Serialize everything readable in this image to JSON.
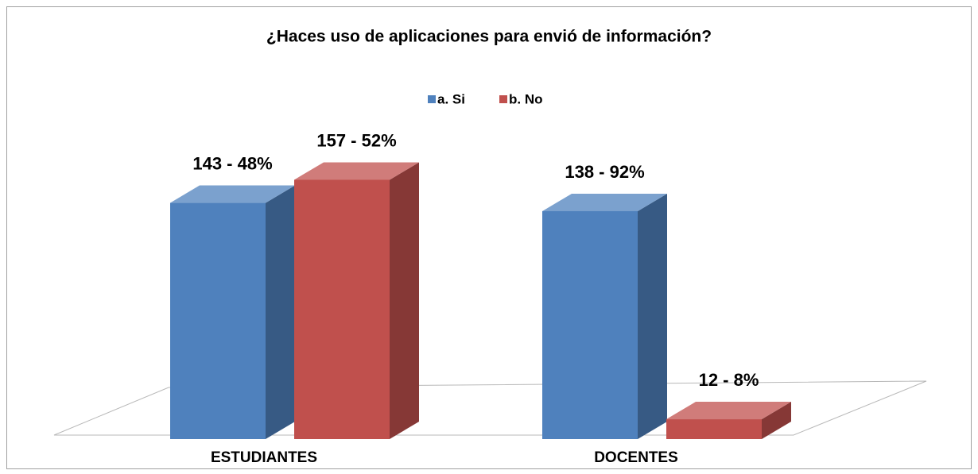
{
  "chart_data": {
    "type": "bar3d",
    "title": "¿Haces uso de aplicaciones para envió de información?",
    "categories": [
      "ESTUDIANTES",
      "DOCENTES"
    ],
    "series": [
      {
        "name": "a. Si",
        "color": "#4f81bd",
        "values": [
          143,
          138
        ],
        "value_labels": [
          "143 - 48%",
          "138 - 92%"
        ]
      },
      {
        "name": "b. No",
        "color": "#c0504d",
        "values": [
          157,
          12
        ],
        "value_labels": [
          "157 - 52%",
          "12 - 8%"
        ]
      }
    ],
    "legend": "top"
  }
}
